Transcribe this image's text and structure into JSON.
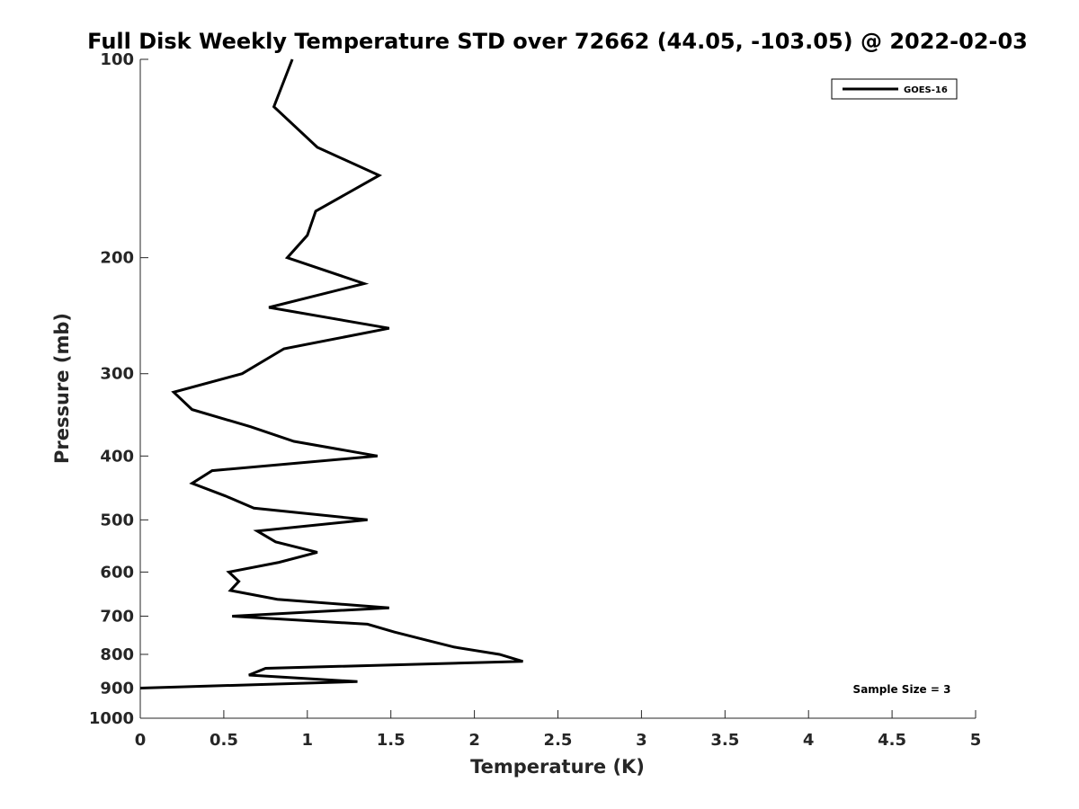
{
  "chart_data": {
    "type": "line",
    "title": "Full Disk Weekly Temperature STD over 72662 (44.05, -103.05) @ 2022-02-03",
    "xlabel": "Temperature (K)",
    "ylabel": "Pressure (mb)",
    "xlim": [
      0,
      5
    ],
    "ylim": [
      100,
      1000
    ],
    "y_scale": "log",
    "y_reversed": true,
    "grid": false,
    "legend_position": "top-right",
    "x_ticks": [
      "0",
      "0.5",
      "1",
      "1.5",
      "2",
      "2.5",
      "3",
      "3.5",
      "4",
      "4.5",
      "5"
    ],
    "y_ticks": [
      "100",
      "200",
      "300",
      "400",
      "500",
      "600",
      "700",
      "800",
      "900",
      "1000"
    ],
    "series": [
      {
        "name": "GOES-16",
        "color": "#000000",
        "points": [
          [
            0.91,
            100
          ],
          [
            0.8,
            118
          ],
          [
            1.06,
            136
          ],
          [
            1.43,
            150
          ],
          [
            1.05,
            170
          ],
          [
            1.0,
            185
          ],
          [
            0.88,
            200
          ],
          [
            1.34,
            219
          ],
          [
            0.77,
            238
          ],
          [
            1.49,
            256
          ],
          [
            0.86,
            275
          ],
          [
            0.61,
            300
          ],
          [
            0.2,
            320
          ],
          [
            0.31,
            340
          ],
          [
            0.66,
            361
          ],
          [
            0.92,
            380
          ],
          [
            1.42,
            400
          ],
          [
            0.43,
            421
          ],
          [
            0.31,
            440
          ],
          [
            0.51,
            460
          ],
          [
            0.68,
            480
          ],
          [
            1.36,
            500
          ],
          [
            0.7,
            520
          ],
          [
            0.81,
            540
          ],
          [
            1.06,
            560
          ],
          [
            0.83,
            580
          ],
          [
            0.53,
            600
          ],
          [
            0.59,
            620
          ],
          [
            0.54,
            640
          ],
          [
            0.82,
            660
          ],
          [
            1.49,
            680
          ],
          [
            0.55,
            700
          ],
          [
            1.36,
            720
          ],
          [
            1.52,
            740
          ],
          [
            1.7,
            760
          ],
          [
            1.88,
            780
          ],
          [
            2.15,
            800
          ],
          [
            2.29,
            820
          ],
          [
            0.75,
            840
          ],
          [
            0.65,
            860
          ],
          [
            1.3,
            880
          ],
          [
            0.0,
            900
          ]
        ]
      }
    ],
    "annotations": [
      "Sample Size = 3"
    ]
  }
}
